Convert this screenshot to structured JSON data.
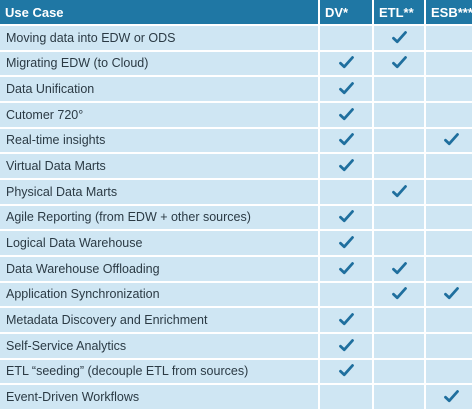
{
  "table": {
    "headers": [
      "Use Case",
      "DV*",
      "ETL**",
      "ESB***"
    ],
    "check_icon": "checkmark-icon",
    "colors": {
      "header_bg": "#1f77a4",
      "header_text": "#ffffff",
      "row_bg": "#cfe6f3",
      "row_text": "#2b3a44",
      "check": "#1f6f9e"
    },
    "rows": [
      {
        "label": "Moving data into EDW or ODS",
        "dv": false,
        "etl": true,
        "esb": false
      },
      {
        "label": "Migrating EDW (to  Cloud)",
        "dv": true,
        "etl": true,
        "esb": false
      },
      {
        "label": "Data Unification",
        "dv": true,
        "etl": false,
        "esb": false
      },
      {
        "label": "Cutomer 720°",
        "dv": true,
        "etl": false,
        "esb": false
      },
      {
        "label": "Real-time insights",
        "dv": true,
        "etl": false,
        "esb": true
      },
      {
        "label": "Virtual Data Marts",
        "dv": true,
        "etl": false,
        "esb": false
      },
      {
        "label": "Physical Data Marts",
        "dv": false,
        "etl": true,
        "esb": false
      },
      {
        "label": "Agile Reporting (from EDW + other sources)",
        "dv": true,
        "etl": false,
        "esb": false
      },
      {
        "label": "Logical Data Warehouse",
        "dv": true,
        "etl": false,
        "esb": false
      },
      {
        "label": "Data Warehouse Offloading",
        "dv": true,
        "etl": true,
        "esb": false
      },
      {
        "label": "Application Synchronization",
        "dv": false,
        "etl": true,
        "esb": true
      },
      {
        "label": "Metadata Discovery and Enrichment",
        "dv": true,
        "etl": false,
        "esb": false
      },
      {
        "label": "Self-Service Analytics",
        "dv": true,
        "etl": false,
        "esb": false
      },
      {
        "label": "ETL “seeding” (decouple ETL from sources)",
        "dv": true,
        "etl": false,
        "esb": false
      },
      {
        "label": "Event-Driven Workflows",
        "dv": false,
        "etl": false,
        "esb": true
      }
    ]
  }
}
